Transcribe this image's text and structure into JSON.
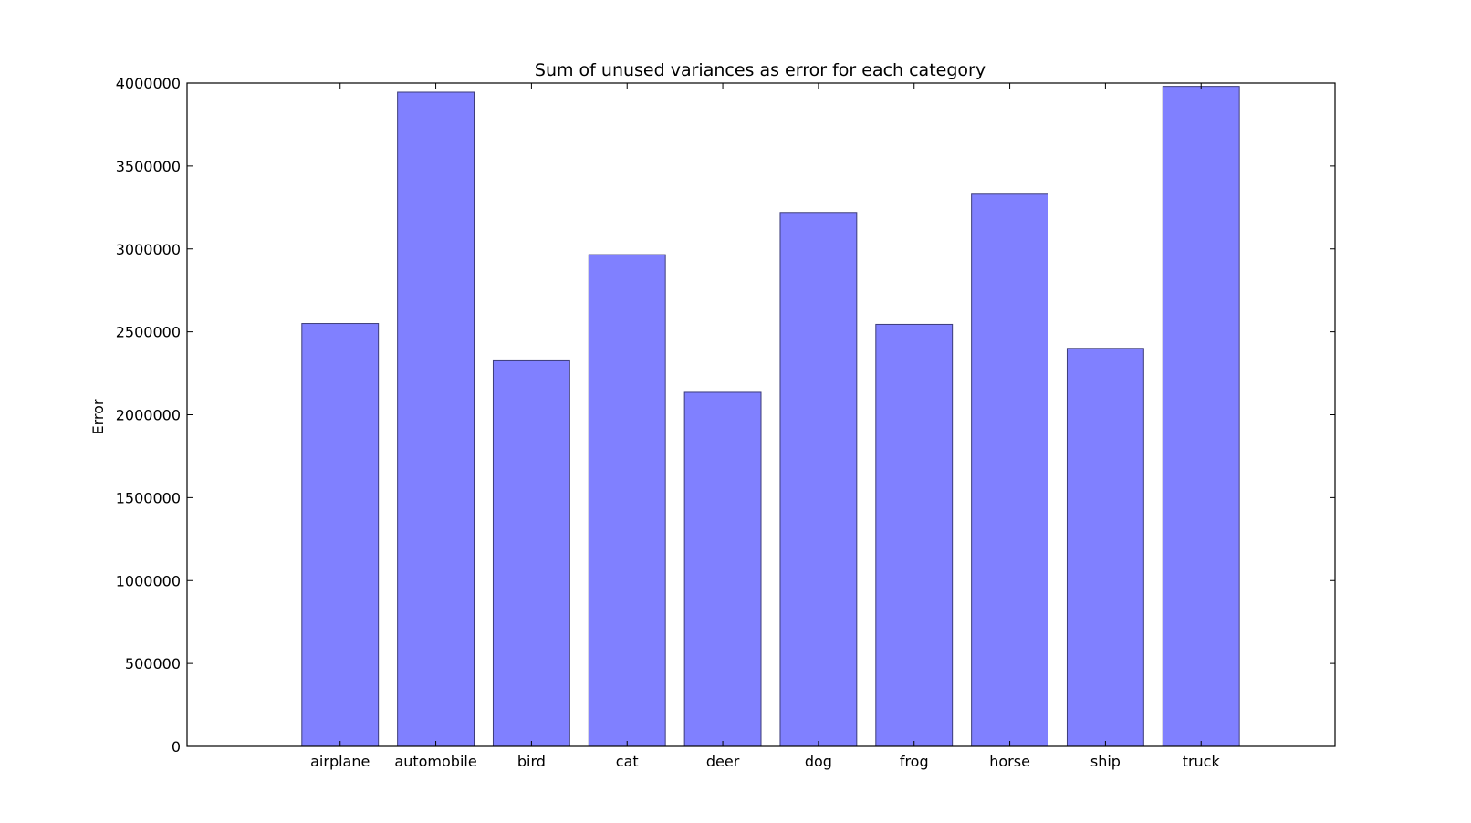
{
  "chart_data": {
    "type": "bar",
    "title": "Sum of unused variances as error for each category",
    "xlabel": "",
    "ylabel": "Error",
    "categories": [
      "airplane",
      "automobile",
      "bird",
      "cat",
      "deer",
      "dog",
      "frog",
      "horse",
      "ship",
      "truck"
    ],
    "values": [
      2550000,
      3945000,
      2325000,
      2965000,
      2135000,
      3220000,
      2545000,
      3330000,
      2400000,
      3980000
    ],
    "ylim": [
      0,
      4000000
    ],
    "yticks": [
      0,
      500000,
      1000000,
      1500000,
      2000000,
      2500000,
      3000000,
      3500000,
      4000000
    ],
    "ytick_labels": [
      "0",
      "500000",
      "1000000",
      "1500000",
      "2000000",
      "2500000",
      "3000000",
      "3500000",
      "4000000"
    ],
    "xlim": [
      -1.6,
      10.4
    ],
    "bar_color": "#8080ff",
    "grid": false,
    "legend": "none"
  }
}
